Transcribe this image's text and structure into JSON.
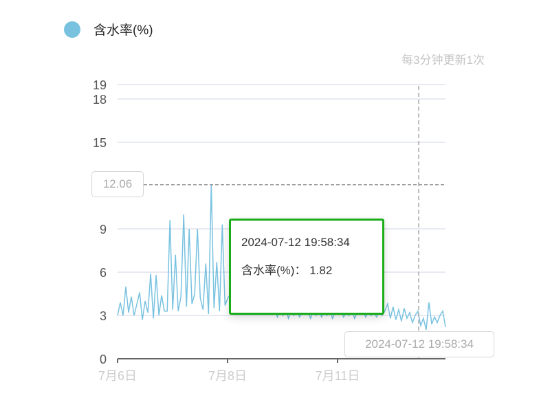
{
  "legend": {
    "label": "含水率(%)",
    "color": "#78c2e0"
  },
  "update_note": "每3分钟更新1次",
  "tooltip": {
    "time": "2024-07-12 19:58:34",
    "series_label": "含水率(%)",
    "separator": "：",
    "value": "1.82",
    "border_color": "#1aad19"
  },
  "crosshair": {
    "y_value_label": "12.06",
    "x_value_label": "2024-07-12 19:58:34"
  },
  "chart_data": {
    "type": "line",
    "series": [
      {
        "name": "含水率(%)",
        "color": "#78c2e0",
        "values": [
          3,
          3.9,
          3,
          5,
          3.2,
          4.3,
          3,
          3.8,
          4.6,
          2.7,
          4,
          3.2,
          5.9,
          2.8,
          5.8,
          3,
          4.4,
          3.3,
          3.3,
          9.6,
          3.4,
          7.2,
          3.3,
          4.3,
          10,
          3.6,
          9.0,
          3.8,
          4.5,
          9.0,
          4.2,
          3.4,
          6.6,
          3.1,
          12.06,
          3.5,
          6.7,
          3.3,
          9.3,
          3.7,
          4.2,
          4.5,
          4.0,
          4.8,
          3.8,
          4.2,
          3.6,
          4.4,
          3.9,
          4.1,
          3.5,
          3.9,
          3.4,
          3.8,
          3.2,
          3.6,
          3.1,
          3.5,
          2.9,
          3.4,
          3.0,
          3.6,
          2.8,
          3.3,
          3.0,
          3.5,
          2.9,
          3.2,
          3.1,
          3.4,
          2.8,
          3.3,
          3.0,
          3.5,
          2.9,
          3.2,
          3.0,
          3.4,
          2.8,
          3.3,
          3.1,
          3.4,
          2.9,
          3.2,
          3.0,
          3.5,
          2.8,
          3.2,
          3.1,
          3.4,
          2.9,
          3.3,
          3.0,
          3.2,
          2.9,
          3.4,
          3.0,
          3.3,
          3.8,
          2.8,
          3.6,
          2.7,
          3.4,
          2.6,
          3.5,
          2.8,
          3.2,
          2.5,
          3.0,
          3.3,
          2.3,
          2.8,
          2.0,
          3.9,
          2.4,
          2.9,
          2.5,
          3.0,
          3.3,
          2.2
        ]
      }
    ],
    "x_tick_labels": [
      "7月6日",
      "7月8日",
      "7月11日"
    ],
    "y_ticks": [
      0,
      3,
      6,
      9,
      15,
      18,
      19
    ],
    "ylim": [
      0,
      19
    ],
    "max_marker": 12.06,
    "grid": true,
    "legend_position": "top-left"
  }
}
